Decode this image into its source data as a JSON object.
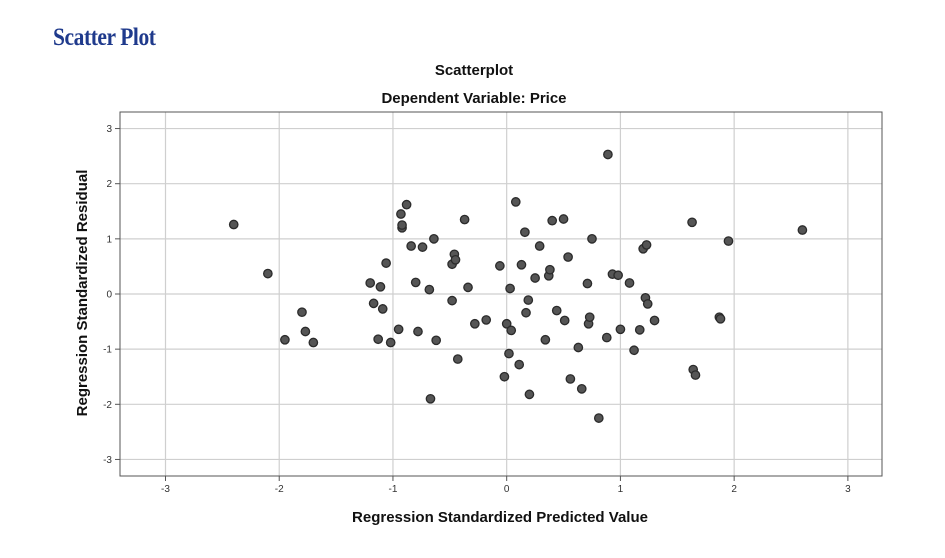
{
  "heading": "Scatter Plot",
  "chart_data": {
    "type": "scatter",
    "title": "Scatterplot",
    "subtitle": "Dependent Variable: Price",
    "xlabel": "Regression Standardized Predicted Value",
    "ylabel": "Regression Standardized Residual",
    "xlim": [
      -3.4,
      3.3
    ],
    "ylim": [
      -3.3,
      3.3
    ],
    "xticks": [
      -3,
      -2,
      -1,
      0,
      1,
      2,
      3
    ],
    "yticks": [
      -3,
      -2,
      -1,
      0,
      1,
      2,
      3
    ],
    "grid": true,
    "marker_color": "#555555",
    "x": [
      -2.4,
      -2.1,
      -1.95,
      -1.8,
      -1.77,
      -1.7,
      -1.2,
      -1.17,
      -1.13,
      -1.11,
      -1.09,
      -1.06,
      -1.02,
      -0.95,
      -0.93,
      -0.92,
      -0.92,
      -0.88,
      -0.84,
      -0.8,
      -0.78,
      -0.74,
      -0.68,
      -0.67,
      -0.64,
      -0.62,
      -0.48,
      -0.48,
      -0.46,
      -0.45,
      -0.43,
      -0.37,
      -0.34,
      -0.28,
      -0.18,
      -0.06,
      -0.02,
      0.0,
      0.02,
      0.03,
      0.04,
      0.08,
      0.11,
      0.13,
      0.16,
      0.17,
      0.19,
      0.2,
      0.25,
      0.29,
      0.34,
      0.37,
      0.38,
      0.4,
      0.44,
      0.5,
      0.51,
      0.54,
      0.56,
      0.63,
      0.66,
      0.71,
      0.72,
      0.73,
      0.75,
      0.81,
      0.88,
      0.89,
      0.93,
      0.98,
      1.0,
      1.08,
      1.12,
      1.17,
      1.2,
      1.22,
      1.23,
      1.24,
      1.3,
      1.63,
      1.64,
      1.66,
      1.87,
      1.88,
      1.95,
      2.6
    ],
    "y": [
      1.26,
      0.37,
      -0.83,
      -0.33,
      -0.68,
      -0.88,
      0.2,
      -0.17,
      -0.82,
      0.13,
      -0.27,
      0.56,
      -0.88,
      -0.64,
      1.45,
      1.2,
      1.25,
      1.62,
      0.87,
      0.21,
      -0.68,
      0.85,
      0.08,
      -1.9,
      1.0,
      -0.84,
      0.54,
      -0.12,
      0.72,
      0.62,
      -1.18,
      1.35,
      0.12,
      -0.54,
      -0.47,
      0.51,
      -1.5,
      -0.54,
      -1.08,
      0.1,
      -0.66,
      1.67,
      -1.28,
      0.53,
      1.12,
      -0.34,
      -0.11,
      -1.82,
      0.29,
      0.87,
      -0.83,
      0.33,
      0.44,
      1.33,
      -0.3,
      1.36,
      -0.48,
      0.67,
      -1.54,
      -0.97,
      -1.72,
      0.19,
      -0.54,
      -0.42,
      1.0,
      -2.25,
      -0.79,
      2.53,
      0.36,
      0.34,
      -0.64,
      0.2,
      -1.02,
      -0.65,
      0.82,
      -0.07,
      0.89,
      -0.18,
      -0.48,
      1.3,
      -1.37,
      -1.47,
      -0.42,
      -0.45,
      0.96,
      1.16
    ]
  }
}
